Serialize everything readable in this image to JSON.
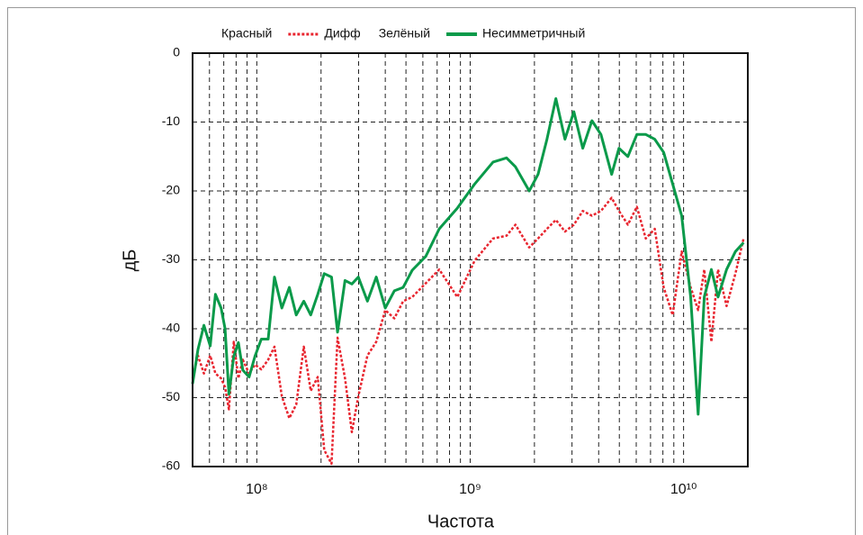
{
  "chart_data": {
    "type": "line",
    "xlabel": "Частота",
    "ylabel": "дБ",
    "xscale": "log",
    "xlim": [
      50000000.0,
      20000000000.0
    ],
    "ylim": [
      -60,
      0
    ],
    "yticks": [
      0,
      -10,
      -20,
      -30,
      -40,
      -50,
      -60
    ],
    "xticks": [
      {
        "value": 100000000.0,
        "label": "10⁸"
      },
      {
        "value": 1000000000.0,
        "label": "10⁹"
      },
      {
        "value": 10000000000.0,
        "label": "10¹⁰"
      }
    ],
    "xgrid": [
      60000000.0,
      70000000.0,
      80000000.0,
      90000000.0,
      100000000.0,
      200000000.0,
      300000000.0,
      400000000.0,
      500000000.0,
      600000000.0,
      700000000.0,
      800000000.0,
      900000000.0,
      1000000000.0,
      2000000000.0,
      3000000000.0,
      4000000000.0,
      5000000000.0,
      6000000000.0,
      7000000000.0,
      8000000000.0,
      9000000000.0,
      10000000000.0
    ],
    "grid": true,
    "x": [
      50000000.0,
      53000000.0,
      56500000.0,
      60500000.0,
      64000000.0,
      68000000.0,
      71000000.0,
      74000000.0,
      78000000.0,
      82000000.0,
      86000000.0,
      92000000.0,
      98000000.0,
      105000000.0,
      113000000.0,
      121000000.0,
      131000000.0,
      142000000.0,
      153000000.0,
      166000000.0,
      179000000.0,
      193000000.0,
      207000000.0,
      224000000.0,
      239000000.0,
      259000000.0,
      279000000.0,
      299000000.0,
      330000000.0,
      363000000.0,
      400000000.0,
      441000000.0,
      485000000.0,
      535000000.0,
      619000000.0,
      716000000.0,
      870000000.0,
      1050000000.0,
      1280000000.0,
      1480000000.0,
      1630000000.0,
      1890000000.0,
      2080000000.0,
      2290000000.0,
      2520000000.0,
      2780000000.0,
      3060000000.0,
      3370000000.0,
      3720000000.0,
      4100000000.0,
      4600000000.0,
      4980000000.0,
      5480000000.0,
      6040000000.0,
      6650000000.0,
      7330000000.0,
      8070000000.0,
      8890000000.0,
      9800000000.0,
      10800000000.0,
      11700000000.0,
      12500000000.0,
      13500000000.0,
      14500000000.0,
      15900000000.0,
      17500000000.0,
      19100000000.0
    ],
    "series": [
      {
        "name": "Дифф",
        "color_name": "Красный",
        "color": "#e8252f",
        "dash": "dotted",
        "values": [
          -47.2,
          -43.9,
          -46.5,
          -43.9,
          -46.5,
          -47.2,
          -48.5,
          -51.7,
          -41.9,
          -47.2,
          -44.5,
          -46.5,
          -45.2,
          -45.9,
          -44.5,
          -42.6,
          -49.8,
          -53,
          -51,
          -42.6,
          -49,
          -47,
          -57.6,
          -59.6,
          -41.3,
          -47.2,
          -55,
          -49.8,
          -43.9,
          -41.9,
          -37.3,
          -38.5,
          -36,
          -35.4,
          -33.4,
          -31.4,
          -35.4,
          -30.1,
          -26.9,
          -26.5,
          -24.9,
          -28.2,
          -26.9,
          -25.5,
          -24.2,
          -25.9,
          -24.9,
          -22.9,
          -23.6,
          -22.9,
          -21,
          -22.9,
          -24.9,
          -22.3,
          -26.9,
          -25.5,
          -34,
          -38,
          -28.8,
          -34,
          -37.3,
          -31.4,
          -41.9,
          -31.4,
          -36.7,
          -32,
          -26.9
        ]
      },
      {
        "name": "Несимметричный",
        "color_name": "Зелёный",
        "color": "#0a9a4a",
        "dash": "solid",
        "values": [
          -48,
          -43,
          -39.5,
          -42.5,
          -35,
          -37,
          -40,
          -49.5,
          -44,
          -42,
          -46,
          -47,
          -44,
          -41.5,
          -41.5,
          -32.5,
          -37,
          -34,
          -38,
          -36,
          -38,
          -35,
          -32,
          -32.5,
          -40.5,
          -33,
          -33.5,
          -32.5,
          -36,
          -32.5,
          -37,
          -34.5,
          -34,
          -31.5,
          -29.5,
          -25.5,
          -22.5,
          -19,
          -15.8,
          -15.2,
          -16.5,
          -20,
          -17.6,
          -12.5,
          -6.6,
          -12.5,
          -8.5,
          -13.8,
          -9.8,
          -11.8,
          -17.6,
          -13.8,
          -15,
          -11.8,
          -11.8,
          -12.5,
          -14.4,
          -19,
          -23.6,
          -35.4,
          -52.4,
          -35.4,
          -31.4,
          -35.4,
          -31.4,
          -28.8,
          -27.5
        ]
      }
    ]
  }
}
